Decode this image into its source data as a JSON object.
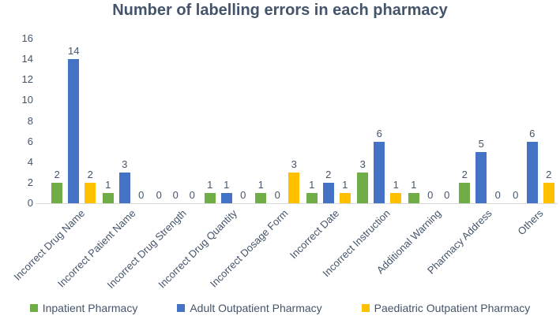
{
  "chart_data": {
    "type": "bar",
    "title": "Number of labelling errors in each pharmacy",
    "xlabel": "",
    "ylabel": "",
    "ylim": [
      0,
      16
    ],
    "yticks": [
      0,
      2,
      4,
      6,
      8,
      10,
      12,
      14,
      16
    ],
    "grid": false,
    "data_labels": true,
    "legend_position": "bottom",
    "text_color": "#44546A",
    "axis_line_color": "#D9D9D9",
    "categories": [
      "Incorrect Drug Name",
      "Incorrect Patient Name",
      "Incorrect Drug Strength",
      "Incorrect Drug Quantity",
      "Incorrect Dosage Form",
      "Incorrect Date",
      "Incorrect Instruction",
      "Additional Warning",
      "Pharmacy Address",
      "Others"
    ],
    "series": [
      {
        "name": "Inpatient Pharmacy",
        "color": "#70AD47",
        "values": [
          2,
          1,
          0,
          1,
          1,
          1,
          3,
          1,
          2,
          0
        ]
      },
      {
        "name": "Adult Outpatient Pharmacy",
        "color": "#4472C4",
        "values": [
          14,
          3,
          0,
          1,
          0,
          2,
          6,
          0,
          5,
          6
        ]
      },
      {
        "name": "Paediatric Outpatient Pharmacy",
        "color": "#FFC000",
        "values": [
          2,
          0,
          0,
          0,
          3,
          1,
          1,
          0,
          0,
          2
        ]
      }
    ]
  }
}
